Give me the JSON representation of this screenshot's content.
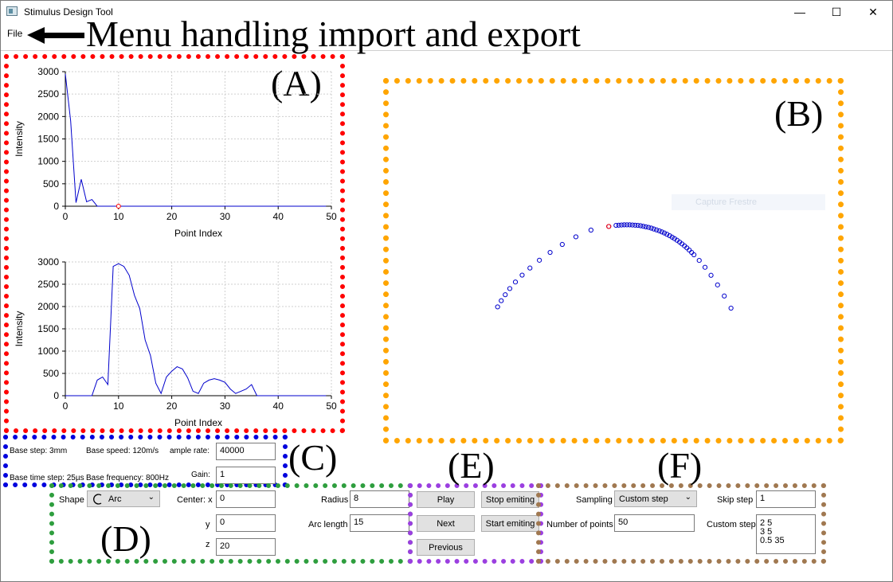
{
  "window": {
    "title": "Stimulus Design Tool",
    "minimize_glyph": "—",
    "maximize_glyph": "☐",
    "close_glyph": "✕"
  },
  "menu": {
    "file": "File"
  },
  "annotations": {
    "menu_note": "Menu handling import and export",
    "A": "(A)",
    "B": "(B)",
    "C": "(C)",
    "D": "(D)",
    "E": "(E)",
    "F": "(F)"
  },
  "colors": {
    "A": "#ff0000",
    "B": "#ffa500",
    "C": "#0000dd",
    "D": "#2e9e3e",
    "E": "#9b3fe0",
    "F": "#a07850",
    "series": "#0000cc",
    "highlight": "#ff0000"
  },
  "capture_ghost": "Capture Frestre",
  "params": {
    "base_step": "Base step: 3mm",
    "base_speed": "Base speed: 120m/s",
    "sample_rate_label": "ample rate:",
    "sample_rate_value": "40000",
    "base_time_step": "Base time step: 25µs",
    "base_frequency": "Base frequency: 800Hz",
    "gain_label": "Gain:",
    "gain_value": "1"
  },
  "shape": {
    "shape_label": "Shape",
    "shape_value": "Arc",
    "center_x_label": "Center: x",
    "center_x_value": "0",
    "y_label": "y",
    "y_value": "0",
    "z_label": "z",
    "z_value": "20",
    "radius_label": "Radius",
    "radius_value": "8",
    "arc_length_label": "Arc length",
    "arc_length_value": "15"
  },
  "controls": {
    "play": "Play",
    "stop_emiting": "Stop emiting",
    "next": "Next",
    "start_emiting": "Start emiting",
    "previous": "Previous"
  },
  "sampling": {
    "sampling_label": "Sampling",
    "sampling_value": "Custom step",
    "skip_step_label": "Skip step",
    "skip_step_value": "1",
    "num_points_label": "Number of points",
    "num_points_value": "50",
    "custom_step_label": "Custom step",
    "custom_step_lines": [
      "2 5",
      "3 5",
      "0.5 35"
    ]
  },
  "chart_data": [
    {
      "type": "line",
      "xlabel": "Point Index",
      "ylabel": "Intensity",
      "xlim": [
        0,
        50
      ],
      "ylim": [
        0,
        3000
      ],
      "xticks": [
        0,
        10,
        20,
        30,
        40,
        50
      ],
      "yticks": [
        0,
        500,
        1000,
        1500,
        2000,
        2500,
        3000
      ],
      "grid": true,
      "x": [
        0,
        1,
        2,
        3,
        4,
        5,
        6,
        7,
        8,
        9,
        10,
        11,
        12,
        13,
        14,
        15,
        16,
        17,
        18,
        19,
        20,
        21,
        22,
        23,
        24,
        25,
        26,
        27,
        28,
        29,
        30,
        31,
        32,
        33,
        34,
        35,
        36,
        37,
        38,
        39,
        40,
        41,
        42,
        43,
        44,
        45,
        46,
        47,
        48,
        49
      ],
      "values": [
        2950,
        1900,
        80,
        600,
        100,
        150,
        0,
        0,
        0,
        0,
        0,
        0,
        0,
        0,
        0,
        0,
        0,
        0,
        0,
        0,
        0,
        0,
        0,
        0,
        0,
        0,
        0,
        0,
        0,
        0,
        0,
        0,
        0,
        0,
        0,
        0,
        0,
        0,
        0,
        0,
        0,
        0,
        0,
        0,
        0,
        0,
        0,
        0,
        0,
        0
      ],
      "highlight_point": {
        "x": 10,
        "y": 0
      }
    },
    {
      "type": "line",
      "xlabel": "Point Index",
      "ylabel": "Intensity",
      "xlim": [
        0,
        50
      ],
      "ylim": [
        0,
        3000
      ],
      "xticks": [
        0,
        10,
        20,
        30,
        40,
        50
      ],
      "yticks": [
        0,
        500,
        1000,
        1500,
        2000,
        2500,
        3000
      ],
      "grid": true,
      "x": [
        0,
        1,
        2,
        3,
        4,
        5,
        6,
        7,
        8,
        9,
        10,
        11,
        12,
        13,
        14,
        15,
        16,
        17,
        18,
        19,
        20,
        21,
        22,
        23,
        24,
        25,
        26,
        27,
        28,
        29,
        30,
        31,
        32,
        33,
        34,
        35,
        36,
        37,
        38,
        39,
        40,
        41,
        42,
        43,
        44,
        45,
        46,
        47,
        48,
        49
      ],
      "values": [
        0,
        0,
        0,
        0,
        0,
        0,
        350,
        420,
        250,
        2900,
        2960,
        2900,
        2700,
        2250,
        1950,
        1250,
        900,
        280,
        50,
        420,
        550,
        650,
        600,
        400,
        100,
        50,
        280,
        350,
        380,
        350,
        300,
        150,
        50,
        100,
        150,
        250,
        0,
        0,
        0,
        0,
        0,
        0,
        0,
        0,
        0,
        0,
        0,
        0,
        0,
        0
      ]
    },
    {
      "type": "scatter",
      "xlim": [
        -8,
        8
      ],
      "ylim": [
        0,
        10
      ],
      "series": [
        {
          "x": [
            -7.12,
            -6.92,
            -6.7,
            -6.45,
            -6.14,
            -5.77,
            -5.34,
            -4.82,
            -4.23,
            -3.56,
            -2.81,
            -1.98,
            -1.0,
            -0.6,
            -0.45,
            -0.3,
            -0.15,
            0.0,
            0.15,
            0.3,
            0.45,
            0.6,
            0.75,
            0.9,
            1.04,
            1.19,
            1.34,
            1.48,
            1.63,
            1.78,
            1.92,
            2.06,
            2.2,
            2.35,
            2.49,
            2.62,
            2.76,
            2.9,
            3.03,
            3.17,
            3.3,
            3.43,
            3.56,
            3.69,
            3.98,
            4.3,
            4.63,
            4.99,
            5.36,
            5.73
          ],
          "y": [
            3.64,
            3.98,
            4.31,
            4.65,
            5.01,
            5.39,
            5.78,
            6.21,
            6.64,
            7.08,
            7.5,
            7.87,
            8.07,
            8.13,
            8.14,
            8.15,
            8.16,
            8.16,
            8.16,
            8.15,
            8.14,
            8.13,
            8.11,
            8.08,
            8.05,
            8.02,
            7.98,
            7.93,
            7.88,
            7.83,
            7.77,
            7.71,
            7.64,
            7.56,
            7.48,
            7.4,
            7.31,
            7.21,
            7.11,
            7.0,
            6.89,
            6.77,
            6.64,
            6.51,
            6.2,
            5.82,
            5.38,
            4.85,
            4.24,
            3.57
          ]
        }
      ],
      "highlight_point": {
        "x": -1.0,
        "y": 8.07
      }
    }
  ]
}
